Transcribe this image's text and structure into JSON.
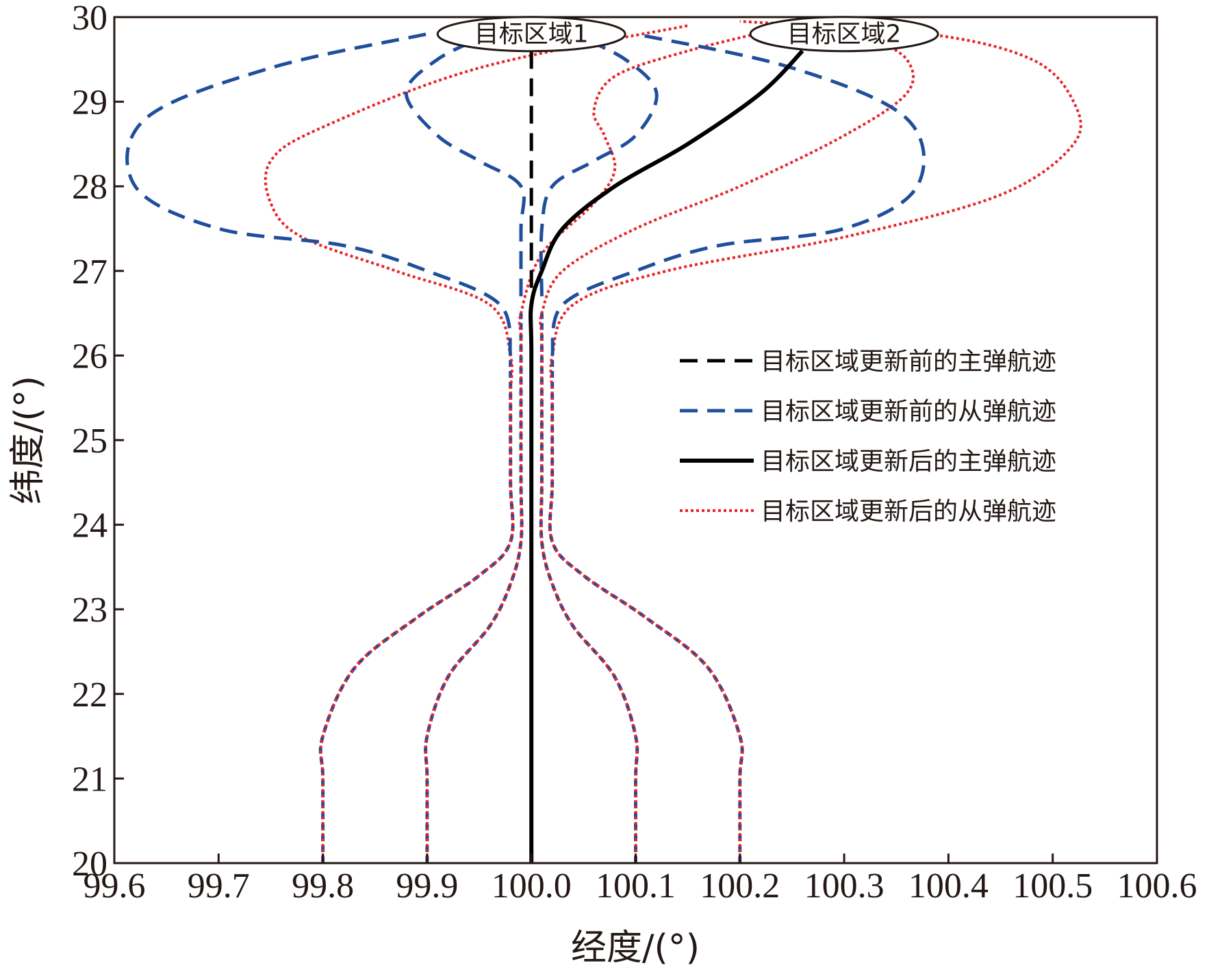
{
  "chart_data": {
    "type": "line",
    "title": "",
    "xlabel": "经度/(°)",
    "ylabel": "纬度/(°)",
    "xlim": [
      99.6,
      100.6
    ],
    "ylim": [
      20,
      30
    ],
    "xticks": [
      "99.6",
      "99.7",
      "99.8",
      "99.9",
      "100.0",
      "100.1",
      "100.2",
      "100.3",
      "100.4",
      "100.5",
      "100.6"
    ],
    "yticks": [
      "20",
      "21",
      "22",
      "23",
      "24",
      "25",
      "26",
      "27",
      "28",
      "29",
      "30"
    ],
    "grid": false,
    "legend_position": "center-right",
    "annotations": [
      {
        "text": "目标区域1",
        "x": 100.0,
        "y": 29.8
      },
      {
        "text": "目标区域2",
        "x": 100.3,
        "y": 29.8
      }
    ],
    "series": [
      {
        "name": "目标区域更新前的主弹航迹",
        "color": "#000000",
        "style": "dashed",
        "group": 0,
        "points": [
          [
            100.0,
            26.8
          ],
          [
            100.0,
            27.5
          ],
          [
            100.0,
            28.5
          ],
          [
            100.0,
            29.6
          ]
        ]
      },
      {
        "name": "目标区域更新前的从弹航迹",
        "color": "#1f4e9c",
        "style": "dashed",
        "group": 0,
        "points": [
          [
            99.98,
            26.0
          ],
          [
            99.97,
            26.6
          ],
          [
            99.9,
            27.0
          ],
          [
            99.82,
            27.3
          ],
          [
            99.7,
            27.5
          ],
          [
            99.62,
            28.0
          ],
          [
            99.63,
            28.8
          ],
          [
            99.75,
            29.4
          ],
          [
            99.9,
            29.8
          ]
        ]
      },
      {
        "name": "",
        "color": "#1f4e9c",
        "style": "dashed",
        "group": 0,
        "points": [
          [
            99.99,
            26.7
          ],
          [
            99.99,
            27.5
          ],
          [
            99.99,
            28.0
          ],
          [
            99.95,
            28.3
          ],
          [
            99.91,
            28.6
          ],
          [
            99.88,
            29.1
          ],
          [
            99.91,
            29.5
          ],
          [
            99.96,
            29.8
          ]
        ]
      },
      {
        "name": "",
        "color": "#1f4e9c",
        "style": "dashed",
        "group": 0,
        "points": [
          [
            100.01,
            26.7
          ],
          [
            100.01,
            27.5
          ],
          [
            100.02,
            28.0
          ],
          [
            100.06,
            28.3
          ],
          [
            100.1,
            28.6
          ],
          [
            100.12,
            29.1
          ],
          [
            100.09,
            29.5
          ],
          [
            100.04,
            29.8
          ]
        ]
      },
      {
        "name": "",
        "color": "#1f4e9c",
        "style": "dashed",
        "group": 0,
        "points": [
          [
            100.02,
            26.0
          ],
          [
            100.03,
            26.6
          ],
          [
            100.1,
            27.0
          ],
          [
            100.18,
            27.3
          ],
          [
            100.3,
            27.5
          ],
          [
            100.37,
            28.0
          ],
          [
            100.36,
            28.8
          ],
          [
            100.25,
            29.4
          ],
          [
            100.1,
            29.8
          ]
        ]
      },
      {
        "name": "目标区域更新后的主弹航迹",
        "color": "#000000",
        "style": "solid",
        "group": 0,
        "points": [
          [
            100.0,
            20.0
          ],
          [
            100.0,
            22.0
          ],
          [
            100.0,
            24.0
          ],
          [
            100.0,
            26.0
          ],
          [
            100.0,
            26.6
          ],
          [
            100.01,
            27.0
          ],
          [
            100.03,
            27.5
          ],
          [
            100.08,
            28.0
          ],
          [
            100.15,
            28.5
          ],
          [
            100.22,
            29.1
          ],
          [
            100.26,
            29.6
          ]
        ]
      },
      {
        "name": "目标区域更新后的从弹航迹",
        "color": "#e8242b",
        "style": "dotted",
        "group": 1,
        "points": [
          [
            99.8,
            20.0
          ],
          [
            99.8,
            21.0
          ],
          [
            99.8,
            21.5
          ],
          [
            99.83,
            22.3
          ],
          [
            99.89,
            22.9
          ],
          [
            99.95,
            23.4
          ],
          [
            99.98,
            23.8
          ],
          [
            99.98,
            24.5
          ],
          [
            99.98,
            25.5
          ],
          [
            99.98,
            26.0
          ],
          [
            99.96,
            26.6
          ],
          [
            99.87,
            27.0
          ],
          [
            99.78,
            27.4
          ],
          [
            99.75,
            27.8
          ],
          [
            99.75,
            28.3
          ],
          [
            99.8,
            28.7
          ],
          [
            99.95,
            29.4
          ],
          [
            100.15,
            29.9
          ]
        ]
      },
      {
        "name": "",
        "color": "#e8242b",
        "style": "dotted",
        "group": 1,
        "points": [
          [
            99.9,
            20.0
          ],
          [
            99.9,
            21.0
          ],
          [
            99.9,
            21.5
          ],
          [
            99.92,
            22.2
          ],
          [
            99.96,
            22.8
          ],
          [
            99.98,
            23.3
          ],
          [
            99.99,
            23.8
          ],
          [
            99.99,
            24.5
          ],
          [
            99.99,
            25.5
          ],
          [
            99.99,
            26.2
          ],
          [
            99.99,
            26.5
          ],
          [
            100.01,
            27.2
          ],
          [
            100.06,
            27.8
          ],
          [
            100.08,
            28.2
          ],
          [
            100.07,
            28.6
          ],
          [
            100.06,
            28.9
          ],
          [
            100.08,
            29.3
          ],
          [
            100.15,
            29.6
          ],
          [
            100.25,
            29.9
          ]
        ]
      },
      {
        "name": "",
        "color": "#e8242b",
        "style": "dotted",
        "group": 1,
        "points": [
          [
            100.1,
            20.0
          ],
          [
            100.1,
            21.0
          ],
          [
            100.1,
            21.5
          ],
          [
            100.08,
            22.2
          ],
          [
            100.04,
            22.8
          ],
          [
            100.02,
            23.3
          ],
          [
            100.01,
            23.8
          ],
          [
            100.01,
            24.5
          ],
          [
            100.01,
            25.5
          ],
          [
            100.01,
            26.2
          ],
          [
            100.01,
            26.5
          ],
          [
            100.03,
            27.0
          ],
          [
            100.1,
            27.5
          ],
          [
            100.2,
            28.0
          ],
          [
            100.3,
            28.6
          ],
          [
            100.36,
            29.1
          ],
          [
            100.36,
            29.5
          ],
          [
            100.32,
            29.8
          ]
        ]
      },
      {
        "name": "",
        "color": "#e8242b",
        "style": "dotted",
        "group": 1,
        "points": [
          [
            100.2,
            20.0
          ],
          [
            100.2,
            21.0
          ],
          [
            100.2,
            21.5
          ],
          [
            100.17,
            22.3
          ],
          [
            100.11,
            22.9
          ],
          [
            100.05,
            23.4
          ],
          [
            100.02,
            23.8
          ],
          [
            100.02,
            24.5
          ],
          [
            100.02,
            25.5
          ],
          [
            100.02,
            26.0
          ],
          [
            100.04,
            26.6
          ],
          [
            100.13,
            27.0
          ],
          [
            100.3,
            27.4
          ],
          [
            100.45,
            27.9
          ],
          [
            100.52,
            28.5
          ],
          [
            100.52,
            29.0
          ],
          [
            100.48,
            29.5
          ],
          [
            100.38,
            29.8
          ],
          [
            100.2,
            29.95
          ]
        ]
      },
      {
        "name": "",
        "color": "#1f4e9c",
        "style": "dashed-under",
        "group": 1,
        "points": [
          [
            99.8,
            20.0
          ],
          [
            99.8,
            21.0
          ],
          [
            99.8,
            21.5
          ],
          [
            99.83,
            22.3
          ],
          [
            99.89,
            22.9
          ],
          [
            99.95,
            23.4
          ],
          [
            99.98,
            23.8
          ],
          [
            99.98,
            24.5
          ],
          [
            99.98,
            25.5
          ],
          [
            99.98,
            26.0
          ]
        ]
      },
      {
        "name": "",
        "color": "#1f4e9c",
        "style": "dashed-under",
        "group": 1,
        "points": [
          [
            99.9,
            20.0
          ],
          [
            99.9,
            21.0
          ],
          [
            99.9,
            21.5
          ],
          [
            99.92,
            22.2
          ],
          [
            99.96,
            22.8
          ],
          [
            99.98,
            23.3
          ],
          [
            99.99,
            23.8
          ],
          [
            99.99,
            24.5
          ],
          [
            99.99,
            25.5
          ],
          [
            99.99,
            26.2
          ],
          [
            99.99,
            26.5
          ]
        ]
      },
      {
        "name": "",
        "color": "#1f4e9c",
        "style": "dashed-under",
        "group": 1,
        "points": [
          [
            100.1,
            20.0
          ],
          [
            100.1,
            21.0
          ],
          [
            100.1,
            21.5
          ],
          [
            100.08,
            22.2
          ],
          [
            100.04,
            22.8
          ],
          [
            100.02,
            23.3
          ],
          [
            100.01,
            23.8
          ],
          [
            100.01,
            24.5
          ],
          [
            100.01,
            25.5
          ],
          [
            100.01,
            26.2
          ],
          [
            100.01,
            26.5
          ]
        ]
      },
      {
        "name": "",
        "color": "#1f4e9c",
        "style": "dashed-under",
        "group": 1,
        "points": [
          [
            100.2,
            20.0
          ],
          [
            100.2,
            21.0
          ],
          [
            100.2,
            21.5
          ],
          [
            100.17,
            22.3
          ],
          [
            100.11,
            22.9
          ],
          [
            100.05,
            23.4
          ],
          [
            100.02,
            23.8
          ],
          [
            100.02,
            24.5
          ],
          [
            100.02,
            25.5
          ],
          [
            100.02,
            26.0
          ]
        ]
      }
    ],
    "legend": [
      {
        "label": "目标区域更新前的主弹航迹",
        "color": "#000000",
        "style": "dashed"
      },
      {
        "label": "目标区域更新前的从弹航迹",
        "color": "#1f4e9c",
        "style": "dashed"
      },
      {
        "label": "目标区域更新后的主弹航迹",
        "color": "#000000",
        "style": "solid"
      },
      {
        "label": "目标区域更新后的从弹航迹",
        "color": "#e8242b",
        "style": "dotted"
      }
    ]
  }
}
